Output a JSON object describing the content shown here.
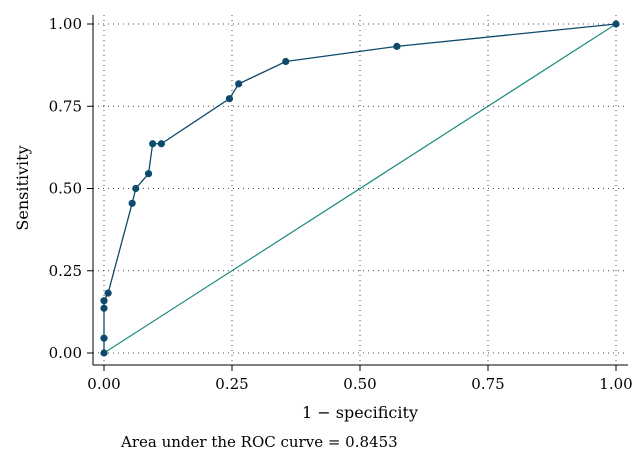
{
  "chart_data": {
    "type": "line",
    "title": "",
    "xlabel": "1 − specificity",
    "ylabel": "Sensitivity",
    "xlim": [
      0,
      1
    ],
    "ylim": [
      0,
      1
    ],
    "x_ticks": [
      "0.00",
      "0.25",
      "0.50",
      "0.75",
      "1.00"
    ],
    "y_ticks": [
      "0.00",
      "0.25",
      "0.50",
      "0.75",
      "1.00"
    ],
    "grid": true,
    "series": [
      {
        "color": "#0d4a6b",
        "markers": true,
        "points": [
          [
            0.0,
            0.0
          ],
          [
            0.0,
            0.045
          ],
          [
            0.0,
            0.136
          ],
          [
            0.0,
            0.159
          ],
          [
            0.008,
            0.182
          ],
          [
            0.055,
            0.455
          ],
          [
            0.062,
            0.5
          ],
          [
            0.087,
            0.545
          ],
          [
            0.095,
            0.636
          ],
          [
            0.112,
            0.636
          ],
          [
            0.245,
            0.773
          ],
          [
            0.263,
            0.818
          ],
          [
            0.355,
            0.886
          ],
          [
            0.572,
            0.932
          ],
          [
            1.0,
            1.0
          ]
        ]
      },
      {
        "color": "#1a8a80",
        "markers": false,
        "points": [
          [
            0,
            0
          ],
          [
            1,
            1
          ]
        ]
      }
    ],
    "annotation": "Area under the ROC curve = 0.8453"
  }
}
